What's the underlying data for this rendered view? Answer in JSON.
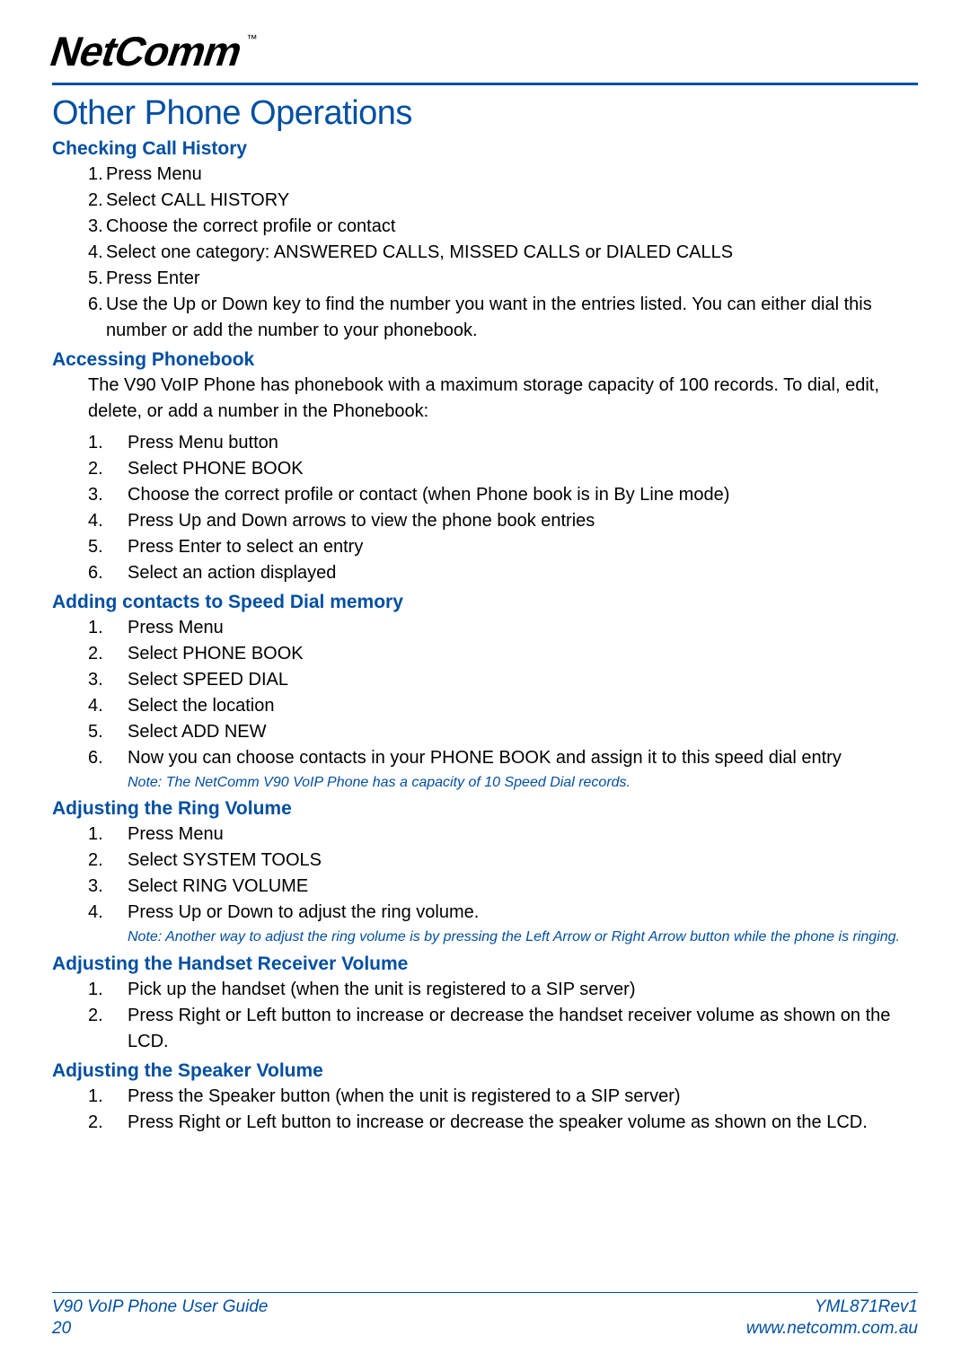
{
  "brand": {
    "name": "NetComm",
    "tm": "™"
  },
  "page_title": "Other Phone Operations",
  "sections": [
    {
      "heading": "Checking Call History",
      "list_style": "compact",
      "items": [
        "Press Menu",
        "Select CALL HISTORY",
        "Choose the correct profile or contact",
        "Select one category: ANSWERED CALLS, MISSED CALLS or DIALED CALLS",
        "Press Enter",
        "Use the Up or Down key to find the number you want in the entries listed. You can either dial this number or add the number to your phonebook."
      ]
    },
    {
      "heading": "Accessing Phonebook",
      "intro": "The V90 VoIP Phone has phonebook with a maximum storage capacity of 100 records. To dial, edit, delete, or add a number in the Phonebook:",
      "list_style": "wide",
      "items": [
        "Press Menu button",
        "Select PHONE BOOK",
        "Choose the correct profile or contact (when Phone book is in By Line mode)",
        "Press Up and Down arrows to view the phone book entries",
        "Press Enter to select an entry",
        "Select an action displayed"
      ]
    },
    {
      "heading": "Adding contacts to Speed Dial memory",
      "list_style": "wide",
      "items": [
        "Press Menu",
        "Select PHONE BOOK",
        "Select SPEED DIAL",
        "Select the location",
        "Select ADD NEW",
        "Now you can choose contacts in your PHONE BOOK and assign it to this speed dial entry"
      ],
      "note": "Note: The NetComm V90 VoIP Phone has a capacity of 10 Speed Dial records."
    },
    {
      "heading": "Adjusting the Ring Volume",
      "list_style": "wide",
      "items": [
        "Press Menu",
        "Select SYSTEM TOOLS",
        "Select RING VOLUME",
        "Press Up or Down to adjust the ring volume."
      ],
      "note": "Note: Another way to adjust the ring volume is by pressing the Left Arrow or Right Arrow button while the phone is ringing."
    },
    {
      "heading": "Adjusting the Handset Receiver Volume",
      "list_style": "wide",
      "items": [
        "Pick up the handset (when the unit is registered to a SIP server)",
        "Press Right or Left button to increase or decrease the handset receiver volume as shown on the LCD."
      ]
    },
    {
      "heading": "Adjusting the Speaker Volume",
      "list_style": "wide",
      "items": [
        "Press the Speaker button (when the unit is registered to a SIP server)",
        "Press Right or Left button to increase or decrease the speaker volume as shown on the LCD."
      ]
    }
  ],
  "footer": {
    "left_top": "V90 VoIP Phone User Guide",
    "left_bottom": "20",
    "right_top": "YML871Rev1",
    "right_bottom": "www.netcomm.com.au"
  },
  "colors": {
    "brand_blue": "#014fa2",
    "text": "#000000",
    "background": "#ffffff"
  }
}
